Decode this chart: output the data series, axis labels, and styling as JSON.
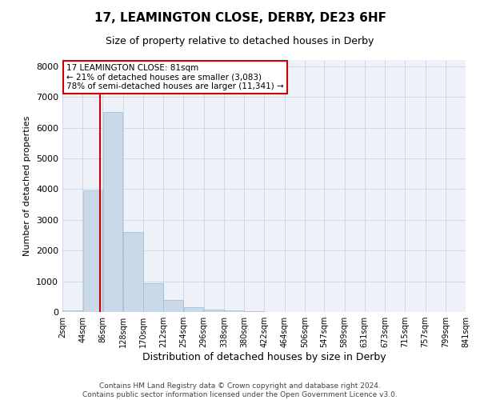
{
  "title": "17, LEAMINGTON CLOSE, DERBY, DE23 6HF",
  "subtitle": "Size of property relative to detached houses in Derby",
  "xlabel": "Distribution of detached houses by size in Derby",
  "ylabel": "Number of detached properties",
  "property_size": 81,
  "ann_line1": "17 LEAMINGTON CLOSE: 81sqm",
  "ann_line2": "← 21% of detached houses are smaller (3,083)",
  "ann_line3": "78% of semi-detached houses are larger (11,341) →",
  "bin_edges": [
    2,
    44,
    86,
    128,
    170,
    212,
    254,
    296,
    338,
    380,
    422,
    464,
    506,
    547,
    589,
    631,
    673,
    715,
    757,
    799,
    841
  ],
  "bar_values": [
    50,
    3950,
    6500,
    2600,
    950,
    400,
    150,
    80,
    50,
    30,
    10,
    5,
    3,
    2,
    1,
    1,
    0,
    0,
    0,
    0
  ],
  "bar_color": "#c9d9e8",
  "bar_edge_color": "#a0b8cc",
  "grid_color": "#cdd8e8",
  "background_color": "#eef2f8",
  "annotation_box_color": "#cc0000",
  "vline_color": "#cc0000",
  "footer_text": "Contains HM Land Registry data © Crown copyright and database right 2024.\nContains public sector information licensed under the Open Government Licence v3.0.",
  "ylim": [
    0,
    8200
  ],
  "yticks": [
    0,
    1000,
    2000,
    3000,
    4000,
    5000,
    6000,
    7000,
    8000
  ],
  "title_fontsize": 11,
  "subtitle_fontsize": 9,
  "ylabel_fontsize": 8,
  "xlabel_fontsize": 9,
  "tick_fontsize": 8,
  "xtick_fontsize": 7,
  "ann_fontsize": 7.5,
  "footer_fontsize": 6.5
}
